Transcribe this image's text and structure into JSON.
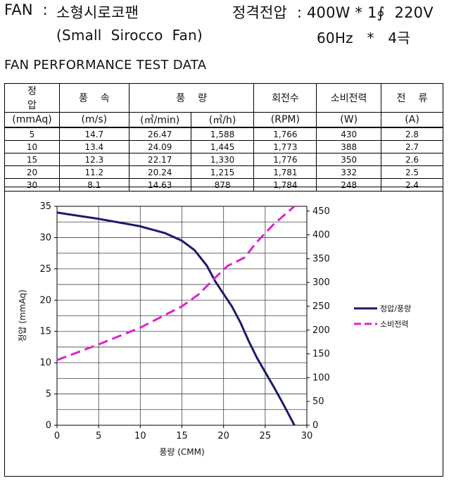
{
  "header": {
    "fan_label": "FAN  :",
    "fan_name_kr": "소형시로코팬",
    "fan_name_en": "(Small  Sirocco  Fan)",
    "rated_label": "정격전압  :",
    "rated_value": "400W * 1∮  220V",
    "rated_freq": "60Hz   *   4극"
  },
  "section_title": "FAN PERFORMANCE TEST DATA",
  "table": {
    "headers_top": [
      "정압",
      "풍속",
      "풍량",
      "회전수",
      "소비전력",
      "전류"
    ],
    "headers_units": [
      "(mmAq)",
      "(m/s)",
      "(㎥/min)",
      "(㎥/h)",
      "(RPM)",
      "(W)",
      "(A)"
    ],
    "rows": [
      [
        "5",
        "14.7",
        "26.47",
        "1,588",
        "1,766",
        "430",
        "2.8"
      ],
      [
        "10",
        "13.4",
        "24.09",
        "1,445",
        "1,773",
        "388",
        "2.7"
      ],
      [
        "15",
        "12.3",
        "22.17",
        "1,330",
        "1,776",
        "350",
        "2.6"
      ],
      [
        "20",
        "11.2",
        "20.24",
        "1,215",
        "1,781",
        "332",
        "2.5"
      ],
      [
        "30",
        "8.1",
        "14.63",
        "878",
        "1,784",
        "248",
        "2.4"
      ]
    ]
  },
  "chart_data": {
    "type": "line",
    "title": "",
    "xlabel": "풍량 (CMM)",
    "ylabel": "정압 (mmAq)",
    "y2label": "",
    "xlim": [
      0,
      30
    ],
    "ylim": [
      0,
      35
    ],
    "y2lim": [
      0,
      460
    ],
    "x_ticks": [
      0,
      5,
      10,
      15,
      20,
      25,
      30
    ],
    "y_ticks": [
      0,
      5,
      10,
      15,
      20,
      25,
      30,
      35
    ],
    "y2_ticks": [
      0,
      50,
      100,
      150,
      200,
      250,
      300,
      350,
      400,
      450
    ],
    "grid": true,
    "legend_position": "right",
    "series": [
      {
        "name": "정압/풍량",
        "axis": "left",
        "color": "#1a1a6e",
        "style": "solid",
        "x": [
          0,
          5,
          10,
          13,
          15,
          16.5,
          18,
          19,
          20,
          21,
          22,
          23,
          24,
          25,
          26,
          27,
          28,
          28.5
        ],
        "y": [
          34,
          33,
          31.8,
          30.7,
          29.5,
          28,
          25.5,
          23,
          21,
          19,
          16.5,
          13.5,
          10.8,
          8.5,
          6.2,
          3.8,
          1.3,
          0
        ]
      },
      {
        "name": "소비전력",
        "axis": "right",
        "color": "#e020d0",
        "style": "dashed",
        "x": [
          0,
          5,
          10,
          15,
          17,
          19,
          20.5,
          22.5,
          24,
          26,
          28.5
        ],
        "y": [
          137,
          170,
          205,
          250,
          275,
          310,
          335,
          352,
          385,
          422,
          460
        ]
      }
    ]
  }
}
